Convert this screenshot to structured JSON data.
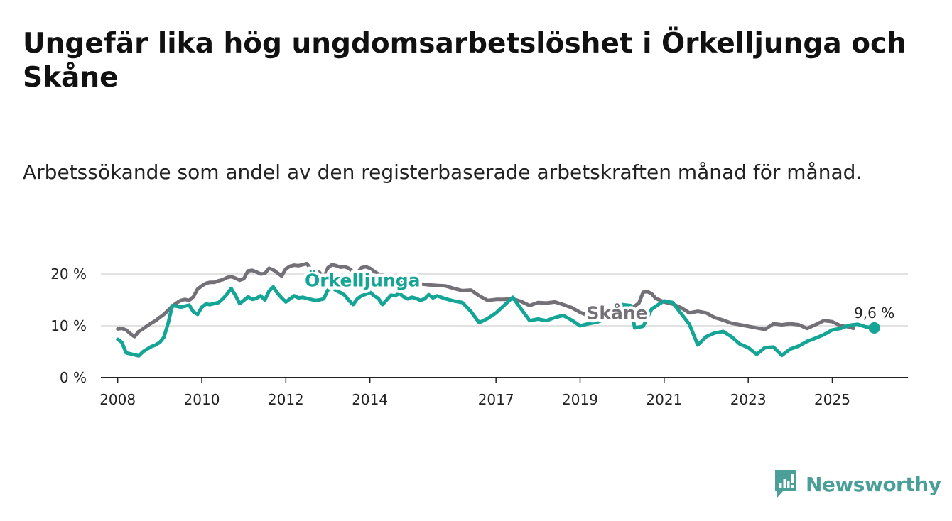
{
  "title": "Ungefär lika hög ungdomsarbetslöshet i Örkelljunga och Skåne",
  "subtitle": "Arbetssökande som andel av den registerbaserade arbetskraften månad för månad.",
  "brand": {
    "name": "Newsworthy",
    "color": "#4a9f99",
    "icon": "newsworthy-logo-icon"
  },
  "colors": {
    "orkelljunga": "#14a596",
    "skane": "#747078",
    "grid": "#d9d9d9",
    "axis": "#222222"
  },
  "chart_data": {
    "type": "line",
    "title": "",
    "xlabel": "",
    "ylabel": "",
    "xlim": [
      2007.6,
      2026.8
    ],
    "ylim": [
      0,
      20
    ],
    "y_ticks": [
      {
        "value": 0,
        "label": "0 %"
      },
      {
        "value": 10,
        "label": "10 %"
      },
      {
        "value": 20,
        "label": "20 %"
      }
    ],
    "x_ticks": [
      {
        "value": 2008,
        "label": "2008"
      },
      {
        "value": 2010,
        "label": "2010"
      },
      {
        "value": 2012,
        "label": "2012"
      },
      {
        "value": 2014,
        "label": "2014"
      },
      {
        "value": 2017,
        "label": "2017"
      },
      {
        "value": 2019,
        "label": "2019"
      },
      {
        "value": 2021,
        "label": "2021"
      },
      {
        "value": 2023,
        "label": "2023"
      },
      {
        "value": 2025,
        "label": "2025"
      }
    ],
    "series": [
      {
        "name": "Skåne",
        "label": "Skåne",
        "color": "#747078",
        "label_at": {
          "x": 2019.15,
          "y": 11.3
        },
        "points": [
          [
            2008.0,
            9.4
          ],
          [
            2008.1,
            9.5
          ],
          [
            2008.2,
            9.2
          ],
          [
            2008.3,
            8.5
          ],
          [
            2008.4,
            7.9
          ],
          [
            2008.5,
            8.9
          ],
          [
            2008.6,
            9.4
          ],
          [
            2008.7,
            10.0
          ],
          [
            2008.8,
            10.5
          ],
          [
            2008.9,
            11.0
          ],
          [
            2009.0,
            11.6
          ],
          [
            2009.1,
            12.2
          ],
          [
            2009.2,
            13.0
          ],
          [
            2009.3,
            13.8
          ],
          [
            2009.4,
            14.4
          ],
          [
            2009.5,
            14.9
          ],
          [
            2009.6,
            15.1
          ],
          [
            2009.7,
            14.9
          ],
          [
            2009.8,
            15.6
          ],
          [
            2009.9,
            17.1
          ],
          [
            2010.0,
            17.7
          ],
          [
            2010.1,
            18.2
          ],
          [
            2010.2,
            18.4
          ],
          [
            2010.3,
            18.4
          ],
          [
            2010.4,
            18.7
          ],
          [
            2010.5,
            18.9
          ],
          [
            2010.6,
            19.3
          ],
          [
            2010.7,
            19.5
          ],
          [
            2010.8,
            19.2
          ],
          [
            2010.9,
            18.8
          ],
          [
            2011.0,
            19.1
          ],
          [
            2011.1,
            20.6
          ],
          [
            2011.2,
            20.7
          ],
          [
            2011.3,
            20.4
          ],
          [
            2011.4,
            20.0
          ],
          [
            2011.5,
            20.1
          ],
          [
            2011.6,
            21.1
          ],
          [
            2011.7,
            20.8
          ],
          [
            2011.8,
            20.2
          ],
          [
            2011.9,
            19.6
          ],
          [
            2012.0,
            21.0
          ],
          [
            2012.1,
            21.5
          ],
          [
            2012.2,
            21.7
          ],
          [
            2012.3,
            21.6
          ],
          [
            2012.4,
            21.8
          ],
          [
            2012.5,
            22.0
          ],
          [
            2012.6,
            20.9
          ],
          [
            2012.7,
            20.6
          ],
          [
            2012.8,
            20.3
          ],
          [
            2012.9,
            19.1
          ],
          [
            2013.0,
            21.2
          ],
          [
            2013.1,
            21.8
          ],
          [
            2013.2,
            21.6
          ],
          [
            2013.3,
            21.3
          ],
          [
            2013.4,
            21.4
          ],
          [
            2013.5,
            21.1
          ],
          [
            2013.6,
            20.4
          ],
          [
            2013.7,
            20.2
          ],
          [
            2013.8,
            21.2
          ],
          [
            2013.9,
            21.4
          ],
          [
            2014.0,
            21.1
          ],
          [
            2014.1,
            20.5
          ],
          [
            2014.2,
            20.0
          ],
          [
            2014.4,
            19.5
          ],
          [
            2014.6,
            19.0
          ],
          [
            2014.8,
            18.6
          ],
          [
            2015.0,
            18.3
          ],
          [
            2015.2,
            18.1
          ],
          [
            2015.4,
            17.9
          ],
          [
            2015.6,
            17.8
          ],
          [
            2015.8,
            17.7
          ],
          [
            2016.0,
            17.2
          ],
          [
            2016.2,
            16.8
          ],
          [
            2016.4,
            16.9
          ],
          [
            2016.6,
            15.8
          ],
          [
            2016.8,
            14.9
          ],
          [
            2017.0,
            15.1
          ],
          [
            2017.2,
            15.1
          ],
          [
            2017.4,
            15.2
          ],
          [
            2017.6,
            14.7
          ],
          [
            2017.8,
            13.9
          ],
          [
            2018.0,
            14.5
          ],
          [
            2018.2,
            14.4
          ],
          [
            2018.4,
            14.6
          ],
          [
            2018.6,
            14.1
          ],
          [
            2018.8,
            13.5
          ],
          [
            2019.0,
            12.6
          ],
          [
            2019.2,
            11.9
          ],
          [
            2019.4,
            12.5
          ],
          [
            2019.6,
            12.1
          ],
          [
            2019.8,
            11.7
          ],
          [
            2020.0,
            11.5
          ],
          [
            2020.2,
            13.2
          ],
          [
            2020.4,
            14.4
          ],
          [
            2020.5,
            16.5
          ],
          [
            2020.6,
            16.6
          ],
          [
            2020.7,
            16.2
          ],
          [
            2020.8,
            15.3
          ],
          [
            2021.0,
            14.6
          ],
          [
            2021.2,
            14.2
          ],
          [
            2021.4,
            13.5
          ],
          [
            2021.6,
            12.5
          ],
          [
            2021.8,
            12.8
          ],
          [
            2022.0,
            12.5
          ],
          [
            2022.2,
            11.6
          ],
          [
            2022.4,
            11.1
          ],
          [
            2022.6,
            10.5
          ],
          [
            2022.8,
            10.2
          ],
          [
            2023.0,
            9.9
          ],
          [
            2023.2,
            9.6
          ],
          [
            2023.4,
            9.3
          ],
          [
            2023.6,
            10.4
          ],
          [
            2023.8,
            10.2
          ],
          [
            2024.0,
            10.4
          ],
          [
            2024.2,
            10.2
          ],
          [
            2024.4,
            9.5
          ],
          [
            2024.6,
            10.2
          ],
          [
            2024.8,
            11.0
          ],
          [
            2025.0,
            10.8
          ],
          [
            2025.2,
            10.0
          ],
          [
            2025.4,
            9.8
          ],
          [
            2025.5,
            9.5
          ]
        ]
      },
      {
        "name": "Örkelljunga",
        "label": "Örkelljunga",
        "color": "#14a596",
        "label_at": {
          "x": 2012.45,
          "y": 17.6
        },
        "end_value_label": "9,6 %",
        "points": [
          [
            2008.0,
            7.4
          ],
          [
            2008.1,
            6.8
          ],
          [
            2008.2,
            4.8
          ],
          [
            2008.3,
            4.6
          ],
          [
            2008.4,
            4.4
          ],
          [
            2008.5,
            4.2
          ],
          [
            2008.6,
            5.0
          ],
          [
            2008.7,
            5.5
          ],
          [
            2008.8,
            6.0
          ],
          [
            2008.9,
            6.3
          ],
          [
            2009.0,
            6.8
          ],
          [
            2009.1,
            7.8
          ],
          [
            2009.2,
            10.5
          ],
          [
            2009.3,
            13.9
          ],
          [
            2009.4,
            13.8
          ],
          [
            2009.5,
            13.6
          ],
          [
            2009.6,
            13.8
          ],
          [
            2009.7,
            14.0
          ],
          [
            2009.8,
            12.7
          ],
          [
            2009.9,
            12.2
          ],
          [
            2010.0,
            13.6
          ],
          [
            2010.1,
            14.2
          ],
          [
            2010.2,
            14.1
          ],
          [
            2010.3,
            14.3
          ],
          [
            2010.4,
            14.5
          ],
          [
            2010.5,
            15.2
          ],
          [
            2010.6,
            16.1
          ],
          [
            2010.7,
            17.2
          ],
          [
            2010.8,
            15.9
          ],
          [
            2010.9,
            14.3
          ],
          [
            2011.0,
            14.9
          ],
          [
            2011.1,
            15.6
          ],
          [
            2011.2,
            15.1
          ],
          [
            2011.3,
            15.3
          ],
          [
            2011.4,
            15.8
          ],
          [
            2011.5,
            15.0
          ],
          [
            2011.6,
            16.7
          ],
          [
            2011.7,
            17.5
          ],
          [
            2011.8,
            16.3
          ],
          [
            2011.9,
            15.4
          ],
          [
            2012.0,
            14.6
          ],
          [
            2012.1,
            15.2
          ],
          [
            2012.2,
            15.8
          ],
          [
            2012.3,
            15.4
          ],
          [
            2012.4,
            15.5
          ],
          [
            2012.5,
            15.3
          ],
          [
            2012.6,
            15.1
          ],
          [
            2012.7,
            14.9
          ],
          [
            2012.8,
            15.0
          ],
          [
            2012.9,
            15.2
          ],
          [
            2013.0,
            16.9
          ],
          [
            2013.1,
            17.4
          ],
          [
            2013.2,
            16.8
          ],
          [
            2013.3,
            16.4
          ],
          [
            2013.4,
            15.9
          ],
          [
            2013.5,
            14.9
          ],
          [
            2013.6,
            14.1
          ],
          [
            2013.7,
            15.2
          ],
          [
            2013.8,
            15.8
          ],
          [
            2013.9,
            16.1
          ],
          [
            2014.0,
            16.5
          ],
          [
            2014.1,
            15.8
          ],
          [
            2014.2,
            15.3
          ],
          [
            2014.3,
            14.1
          ],
          [
            2014.4,
            15.0
          ],
          [
            2014.5,
            15.9
          ],
          [
            2014.6,
            15.8
          ],
          [
            2014.7,
            16.3
          ],
          [
            2014.8,
            15.6
          ],
          [
            2014.9,
            15.2
          ],
          [
            2015.0,
            15.5
          ],
          [
            2015.1,
            15.3
          ],
          [
            2015.2,
            14.9
          ],
          [
            2015.3,
            15.2
          ],
          [
            2015.4,
            16.0
          ],
          [
            2015.5,
            15.4
          ],
          [
            2015.6,
            15.8
          ],
          [
            2015.8,
            15.2
          ],
          [
            2016.0,
            14.8
          ],
          [
            2016.2,
            14.5
          ],
          [
            2016.4,
            12.8
          ],
          [
            2016.6,
            10.6
          ],
          [
            2016.8,
            11.4
          ],
          [
            2017.0,
            12.5
          ],
          [
            2017.2,
            14.0
          ],
          [
            2017.4,
            15.5
          ],
          [
            2017.6,
            13.2
          ],
          [
            2017.8,
            11.0
          ],
          [
            2018.0,
            11.3
          ],
          [
            2018.2,
            11.0
          ],
          [
            2018.4,
            11.6
          ],
          [
            2018.6,
            12.0
          ],
          [
            2018.8,
            11.1
          ],
          [
            2019.0,
            10.0
          ],
          [
            2019.2,
            10.4
          ],
          [
            2019.4,
            10.7
          ],
          [
            2019.6,
            11.3
          ],
          [
            2019.8,
            11.8
          ],
          [
            2020.0,
            14.1
          ],
          [
            2020.2,
            13.9
          ],
          [
            2020.3,
            9.6
          ],
          [
            2020.5,
            9.9
          ],
          [
            2020.7,
            13.2
          ],
          [
            2020.9,
            14.3
          ],
          [
            2021.0,
            14.8
          ],
          [
            2021.2,
            14.5
          ],
          [
            2021.4,
            12.4
          ],
          [
            2021.6,
            10.3
          ],
          [
            2021.8,
            6.3
          ],
          [
            2022.0,
            7.9
          ],
          [
            2022.2,
            8.6
          ],
          [
            2022.4,
            8.9
          ],
          [
            2022.6,
            7.9
          ],
          [
            2022.8,
            6.5
          ],
          [
            2023.0,
            5.8
          ],
          [
            2023.2,
            4.5
          ],
          [
            2023.4,
            5.8
          ],
          [
            2023.6,
            5.9
          ],
          [
            2023.8,
            4.3
          ],
          [
            2024.0,
            5.5
          ],
          [
            2024.2,
            6.1
          ],
          [
            2024.4,
            7.0
          ],
          [
            2024.6,
            7.6
          ],
          [
            2024.8,
            8.3
          ],
          [
            2025.0,
            9.2
          ],
          [
            2025.2,
            9.5
          ],
          [
            2025.4,
            10.1
          ],
          [
            2025.6,
            10.3
          ],
          [
            2025.8,
            9.8
          ],
          [
            2026.0,
            9.6
          ]
        ]
      }
    ]
  }
}
